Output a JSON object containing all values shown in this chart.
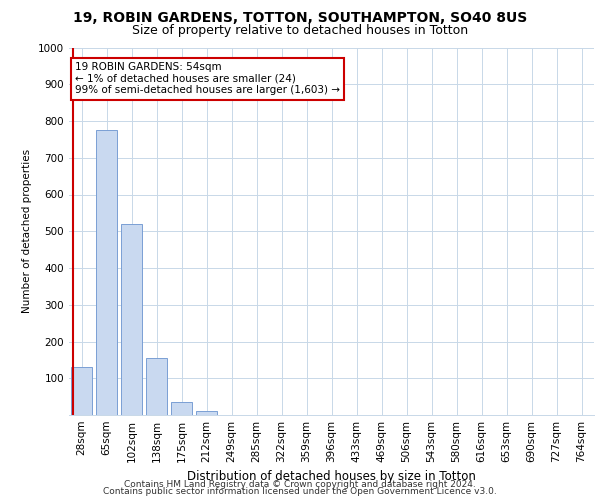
{
  "title1": "19, ROBIN GARDENS, TOTTON, SOUTHAMPTON, SO40 8US",
  "title2": "Size of property relative to detached houses in Totton",
  "xlabel": "Distribution of detached houses by size in Totton",
  "ylabel": "Number of detached properties",
  "categories": [
    "28sqm",
    "65sqm",
    "102sqm",
    "138sqm",
    "175sqm",
    "212sqm",
    "249sqm",
    "285sqm",
    "322sqm",
    "359sqm",
    "396sqm",
    "433sqm",
    "469sqm",
    "506sqm",
    "543sqm",
    "580sqm",
    "616sqm",
    "653sqm",
    "690sqm",
    "727sqm",
    "764sqm"
  ],
  "values": [
    130,
    775,
    520,
    155,
    35,
    10,
    0,
    0,
    0,
    0,
    0,
    0,
    0,
    0,
    0,
    0,
    0,
    0,
    0,
    0,
    0
  ],
  "bar_color": "#c9d9f0",
  "bar_edge_color": "#7a9fd4",
  "marker_color": "#cc0000",
  "annotation_text": "19 ROBIN GARDENS: 54sqm\n← 1% of detached houses are smaller (24)\n99% of semi-detached houses are larger (1,603) →",
  "annotation_box_color": "#ffffff",
  "annotation_border_color": "#cc0000",
  "ylim": [
    0,
    1000
  ],
  "yticks": [
    0,
    100,
    200,
    300,
    400,
    500,
    600,
    700,
    800,
    900,
    1000
  ],
  "footer1": "Contains HM Land Registry data © Crown copyright and database right 2024.",
  "footer2": "Contains public sector information licensed under the Open Government Licence v3.0.",
  "bg_color": "#ffffff",
  "grid_color": "#c8d8e8",
  "title1_fontsize": 10,
  "title2_fontsize": 9,
  "axis_fontsize": 7.5,
  "xlabel_fontsize": 8.5,
  "ylabel_fontsize": 7.5,
  "footer_fontsize": 6.5
}
